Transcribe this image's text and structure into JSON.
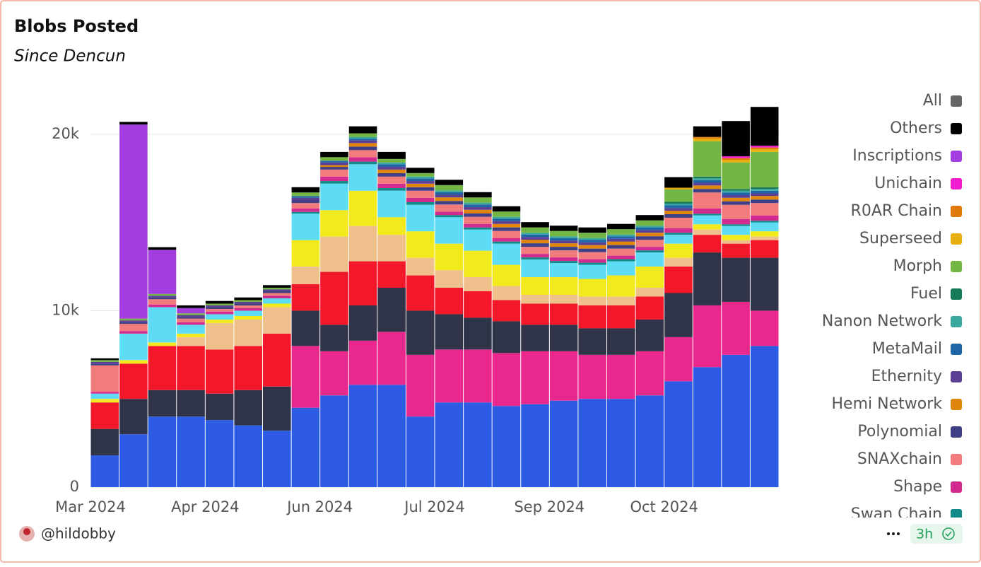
{
  "chart_data": {
    "type": "stacked-bar",
    "title": "Blobs Posted",
    "subtitle": "Since Dencun",
    "categories": [
      "Mar 2024",
      null,
      null,
      null,
      "Apr 2024",
      null,
      null,
      null,
      "Jun 2024",
      null,
      null,
      null,
      "Jul 2024",
      null,
      null,
      null,
      "Sep 2024",
      null,
      null,
      null,
      "Oct 2024",
      null,
      null,
      null
    ],
    "ylim": [
      0,
      22000
    ],
    "yticks": [
      0,
      {
        "value": 10000,
        "label": "10k"
      },
      {
        "value": 20000,
        "label": "20k"
      }
    ],
    "grid": true,
    "legend": "right",
    "series": [
      {
        "color": "#2d5be3",
        "values": [
          1800,
          3000,
          4000,
          4000,
          3800,
          3500,
          3200,
          4500,
          5200,
          5800,
          5800,
          4000,
          4800,
          4800,
          4600,
          4700,
          4900,
          5000,
          5000,
          5200,
          6000,
          6800,
          7500,
          8000
        ]
      },
      {
        "color": "#e8288c",
        "values": [
          0,
          0,
          0,
          0,
          0,
          0,
          0,
          3500,
          2500,
          2500,
          3000,
          3500,
          3000,
          3000,
          3000,
          3000,
          2800,
          2500,
          2500,
          2500,
          2500,
          3500,
          3000,
          2000
        ]
      },
      {
        "color": "#2f3448",
        "values": [
          1500,
          2000,
          1500,
          1500,
          1500,
          2000,
          2500,
          2000,
          1500,
          2000,
          2500,
          2500,
          2000,
          1800,
          1800,
          1500,
          1500,
          1500,
          1500,
          1800,
          2500,
          3000,
          2500,
          3000
        ]
      },
      {
        "color": "#f2182a",
        "values": [
          1500,
          2000,
          2500,
          2500,
          2500,
          2500,
          3000,
          1500,
          3000,
          2500,
          1500,
          2000,
          1500,
          1500,
          1200,
          1200,
          1200,
          1300,
          1300,
          1300,
          1500,
          1000,
          800,
          1000
        ]
      },
      {
        "color": "#f0c08c",
        "values": [
          0,
          0,
          0,
          500,
          1500,
          1500,
          1500,
          1000,
          2000,
          2000,
          1500,
          1000,
          1000,
          800,
          800,
          500,
          500,
          500,
          500,
          500,
          500,
          300,
          200,
          200
        ]
      },
      {
        "color": "#f2ea1c",
        "values": [
          200,
          200,
          200,
          200,
          200,
          200,
          200,
          1500,
          1500,
          2000,
          1000,
          1500,
          1500,
          1500,
          1200,
          1000,
          1000,
          1000,
          1200,
          1200,
          800,
          300,
          300,
          300
        ]
      },
      {
        "color": "#5fdcf5",
        "values": [
          300,
          1500,
          2000,
          500,
          300,
          300,
          300,
          1500,
          1500,
          1500,
          1500,
          1500,
          1500,
          1200,
          1200,
          1000,
          800,
          800,
          800,
          800,
          500,
          500,
          500,
          500
        ]
      },
      {
        "name": "Swan Chain",
        "color": "#138a8a",
        "values": [
          0,
          0,
          0,
          0,
          0,
          0,
          0,
          100,
          150,
          150,
          150,
          150,
          120,
          120,
          120,
          120,
          120,
          120,
          120,
          120,
          120,
          100,
          100,
          100
        ]
      },
      {
        "name": "Shape",
        "color": "#d12b8f",
        "values": [
          100,
          150,
          150,
          150,
          150,
          150,
          150,
          200,
          250,
          250,
          250,
          250,
          200,
          200,
          200,
          200,
          200,
          200,
          200,
          200,
          250,
          300,
          300,
          300
        ]
      },
      {
        "name": "SNAXchain",
        "color": "#f27b7b",
        "values": [
          1500,
          400,
          300,
          200,
          150,
          150,
          150,
          300,
          400,
          400,
          400,
          400,
          400,
          400,
          400,
          400,
          400,
          400,
          400,
          400,
          600,
          900,
          800,
          700
        ]
      },
      {
        "name": "Polynomial",
        "color": "#3e3f85",
        "values": [
          100,
          100,
          100,
          100,
          100,
          100,
          100,
          150,
          150,
          200,
          200,
          200,
          200,
          200,
          200,
          200,
          200,
          200,
          200,
          200,
          200,
          200,
          200,
          200
        ]
      },
      {
        "name": "Hemi Network",
        "color": "#e0870b",
        "values": [
          0,
          0,
          0,
          0,
          0,
          0,
          0,
          0,
          100,
          200,
          200,
          200,
          200,
          200,
          200,
          200,
          200,
          200,
          200,
          200,
          200,
          200,
          200,
          200
        ]
      },
      {
        "name": "Ethernity",
        "color": "#5a3f94",
        "values": [
          100,
          100,
          100,
          100,
          100,
          100,
          100,
          150,
          150,
          150,
          150,
          150,
          150,
          150,
          150,
          150,
          150,
          150,
          150,
          150,
          150,
          150,
          150,
          150
        ]
      },
      {
        "name": "MetaMail",
        "color": "#1f66a6",
        "values": [
          0,
          0,
          0,
          0,
          0,
          0,
          0,
          100,
          100,
          100,
          150,
          150,
          150,
          150,
          150,
          150,
          150,
          150,
          150,
          150,
          150,
          150,
          150,
          150
        ]
      },
      {
        "name": "Nanon Network",
        "color": "#3aa89f",
        "values": [
          0,
          0,
          0,
          0,
          0,
          0,
          0,
          0,
          0,
          100,
          100,
          100,
          100,
          100,
          100,
          100,
          100,
          100,
          100,
          100,
          100,
          100,
          100,
          100
        ]
      },
      {
        "name": "Fuel",
        "color": "#157a55",
        "values": [
          0,
          0,
          0,
          0,
          0,
          0,
          0,
          0,
          0,
          0,
          0,
          0,
          0,
          0,
          0,
          0,
          0,
          0,
          0,
          0,
          100,
          100,
          100,
          100
        ]
      },
      {
        "name": "Morph",
        "color": "#74b644",
        "values": [
          100,
          100,
          100,
          100,
          100,
          100,
          100,
          200,
          200,
          200,
          200,
          200,
          300,
          300,
          300,
          300,
          300,
          300,
          300,
          300,
          700,
          2000,
          1500,
          2000
        ]
      },
      {
        "name": "Superseed",
        "color": "#e8b00f",
        "values": [
          0,
          0,
          0,
          0,
          0,
          0,
          0,
          0,
          0,
          0,
          0,
          0,
          0,
          0,
          0,
          0,
          0,
          0,
          0,
          0,
          100,
          150,
          150,
          150
        ]
      },
      {
        "name": "R0AR Chain",
        "color": "#e07b0a",
        "values": [
          0,
          0,
          0,
          0,
          0,
          0,
          0,
          0,
          0,
          0,
          0,
          0,
          0,
          0,
          0,
          0,
          0,
          0,
          0,
          0,
          0,
          100,
          100,
          100
        ]
      },
      {
        "name": "Unichain",
        "color": "#f21bd0",
        "values": [
          0,
          0,
          0,
          0,
          0,
          0,
          0,
          0,
          0,
          0,
          0,
          0,
          0,
          0,
          0,
          0,
          0,
          0,
          0,
          0,
          0,
          0,
          100,
          100
        ]
      },
      {
        "name": "Inscriptions",
        "color": "#a23ee0",
        "values": [
          0,
          11000,
          2500,
          300,
          0,
          0,
          0,
          0,
          0,
          0,
          0,
          0,
          0,
          0,
          0,
          0,
          0,
          0,
          0,
          0,
          0,
          0,
          0,
          0
        ]
      },
      {
        "name": "Others",
        "color": "#000000",
        "values": [
          100,
          150,
          150,
          150,
          150,
          150,
          150,
          300,
          300,
          400,
          400,
          300,
          300,
          300,
          300,
          300,
          300,
          300,
          300,
          300,
          600,
          600,
          2000,
          2200
        ]
      },
      {
        "name": "All",
        "color": "#666666",
        "values": [
          null,
          null,
          null,
          null,
          null,
          null,
          null,
          null,
          null,
          null,
          null,
          null,
          null,
          null,
          null,
          null,
          null,
          null,
          null,
          null,
          null,
          null,
          null,
          null
        ]
      }
    ]
  },
  "footer": {
    "author": "@hildobby",
    "age": "3h"
  }
}
